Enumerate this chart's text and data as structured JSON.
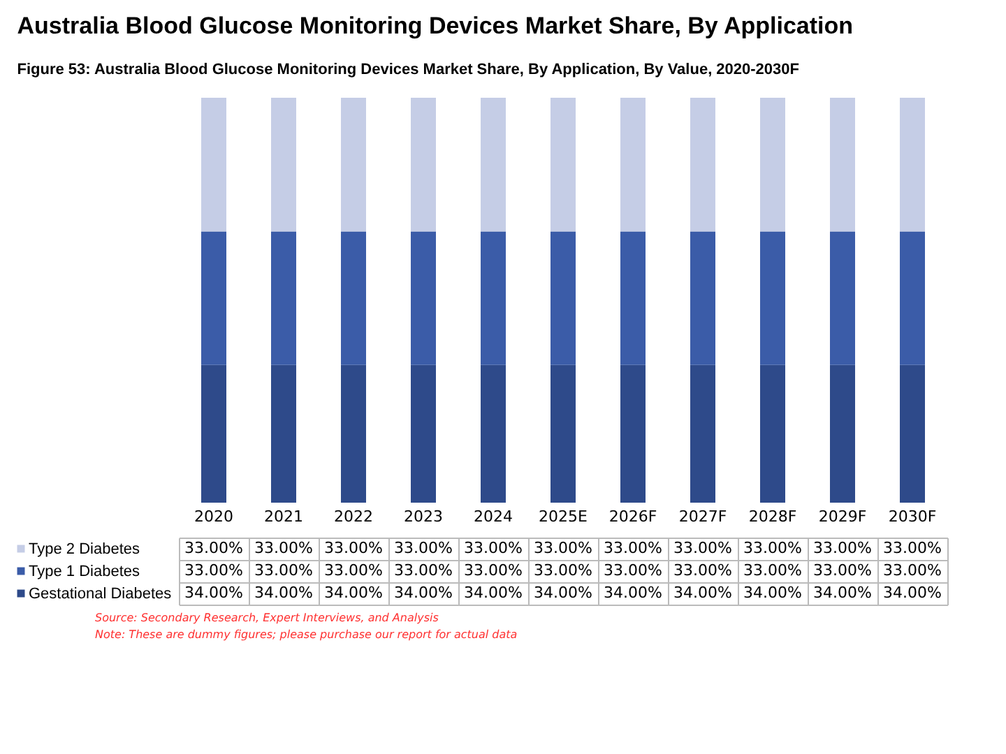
{
  "chart_data": {
    "type": "bar",
    "stacked": true,
    "title": "Australia Blood Glucose Monitoring Devices Market Share, By Application",
    "subtitle": "Figure 53: Australia Blood Glucose Monitoring Devices Market Share, By Application, By Value, 2020-2030F",
    "categories": [
      "2020",
      "2021",
      "2022",
      "2023",
      "2024",
      "2025E",
      "2026F",
      "2027F",
      "2028F",
      "2029F",
      "2030F"
    ],
    "series": [
      {
        "name": "Gestational Diabetes",
        "color": "#2e4a8a",
        "values": [
          34,
          34,
          34,
          34,
          34,
          34,
          34,
          34,
          34,
          34,
          34
        ],
        "value_labels": [
          "34.00%",
          "34.00%",
          "34.00%",
          "34.00%",
          "34.00%",
          "34.00%",
          "34.00%",
          "34.00%",
          "34.00%",
          "34.00%",
          "34.00%"
        ]
      },
      {
        "name": "Type 1 Diabetes",
        "color": "#3b5ca8",
        "values": [
          33,
          33,
          33,
          33,
          33,
          33,
          33,
          33,
          33,
          33,
          33
        ],
        "value_labels": [
          "33.00%",
          "33.00%",
          "33.00%",
          "33.00%",
          "33.00%",
          "33.00%",
          "33.00%",
          "33.00%",
          "33.00%",
          "33.00%",
          "33.00%"
        ]
      },
      {
        "name": "Type 2 Diabetes",
        "color": "#c5cde6",
        "values": [
          33,
          33,
          33,
          33,
          33,
          33,
          33,
          33,
          33,
          33,
          33
        ],
        "value_labels": [
          "33.00%",
          "33.00%",
          "33.00%",
          "33.00%",
          "33.00%",
          "33.00%",
          "33.00%",
          "33.00%",
          "33.00%",
          "33.00%",
          "33.00%"
        ]
      }
    ],
    "legend": "bottom left",
    "annotations": [
      "Source: Secondary Research, Expert Interviews, and Analysis",
      "Note: These are dummy figures; please purchase our report for actual data"
    ]
  }
}
